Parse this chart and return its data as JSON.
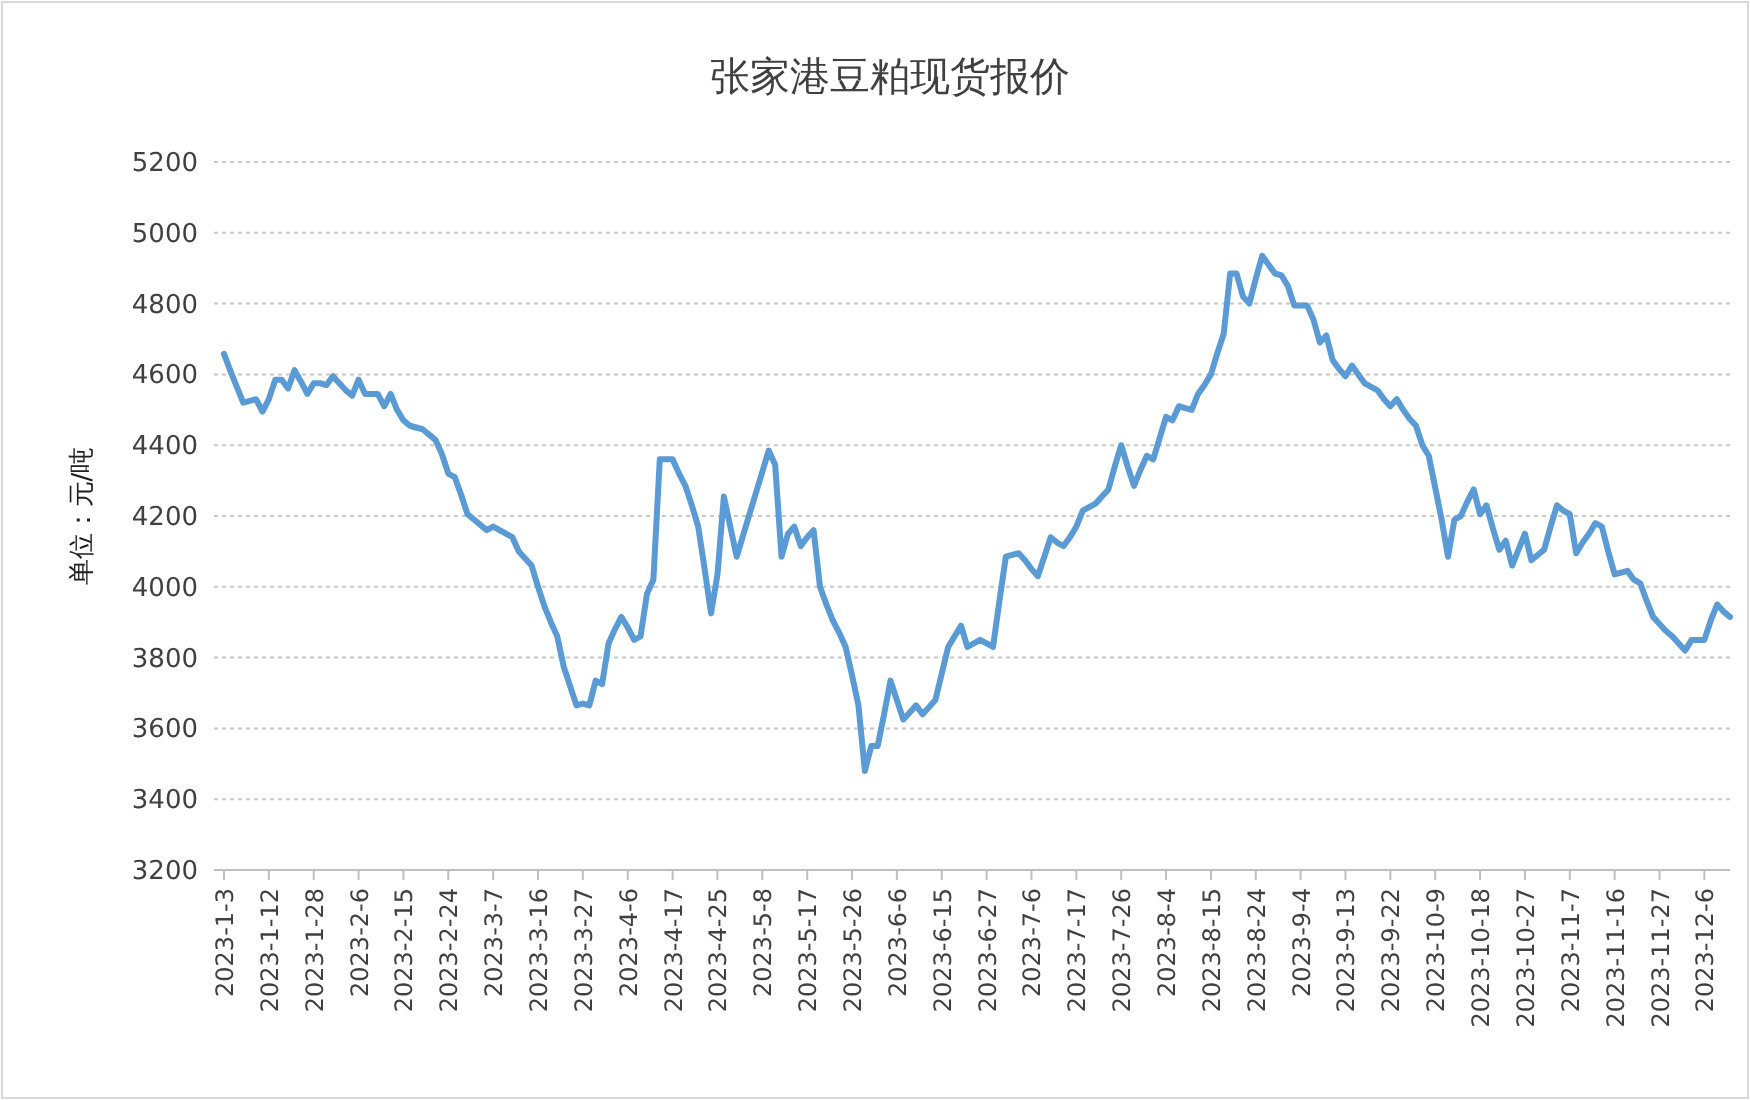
{
  "chart_data": {
    "type": "line",
    "title": "张家港豆粕现货报价",
    "ylabel": "单位：元/吨",
    "color": "#5b9bd5",
    "grid": "y",
    "ylim": [
      3200,
      5200
    ],
    "yticks": [
      3200,
      3400,
      3600,
      3800,
      4000,
      4200,
      4400,
      4600,
      4800,
      5000,
      5200
    ],
    "categories": [
      "2023-1-3",
      null,
      null,
      null,
      null,
      null,
      null,
      "2023-1-12",
      null,
      null,
      null,
      null,
      null,
      null,
      "2023-1-28",
      null,
      null,
      null,
      null,
      null,
      null,
      "2023-2-6",
      null,
      null,
      null,
      null,
      null,
      null,
      "2023-2-15",
      null,
      null,
      null,
      null,
      null,
      null,
      "2023-2-24",
      null,
      null,
      null,
      null,
      null,
      null,
      "2023-3-7",
      null,
      null,
      null,
      null,
      null,
      null,
      "2023-3-16",
      null,
      null,
      null,
      null,
      null,
      null,
      "2023-3-27",
      null,
      null,
      null,
      null,
      null,
      null,
      "2023-4-6",
      null,
      null,
      null,
      null,
      null,
      null,
      "2023-4-17",
      null,
      null,
      null,
      null,
      null,
      null,
      "2023-4-25",
      null,
      null,
      null,
      null,
      null,
      null,
      "2023-5-8",
      null,
      null,
      null,
      null,
      null,
      null,
      "2023-5-17",
      null,
      null,
      null,
      null,
      null,
      null,
      "2023-5-26",
      null,
      null,
      null,
      null,
      null,
      null,
      "2023-6-6",
      null,
      null,
      null,
      null,
      null,
      null,
      "2023-6-15",
      null,
      null,
      null,
      null,
      null,
      null,
      "2023-6-27",
      null,
      null,
      null,
      null,
      null,
      null,
      "2023-7-6",
      null,
      null,
      null,
      null,
      null,
      null,
      "2023-7-17",
      null,
      null,
      null,
      null,
      null,
      null,
      "2023-7-26",
      null,
      null,
      null,
      null,
      null,
      null,
      "2023-8-4",
      null,
      null,
      null,
      null,
      null,
      null,
      "2023-8-15",
      null,
      null,
      null,
      null,
      null,
      null,
      "2023-8-24",
      null,
      null,
      null,
      null,
      null,
      null,
      "2023-9-4",
      null,
      null,
      null,
      null,
      null,
      null,
      "2023-9-13",
      null,
      null,
      null,
      null,
      null,
      null,
      "2023-9-22",
      null,
      null,
      null,
      null,
      null,
      null,
      "2023-10-9",
      null,
      null,
      null,
      null,
      null,
      null,
      "2023-10-18",
      null,
      null,
      null,
      null,
      null,
      null,
      "2023-10-27",
      null,
      null,
      null,
      null,
      null,
      null,
      "2023-11-7",
      null,
      null,
      null,
      null,
      null,
      null,
      "2023-11-16",
      null,
      null,
      null,
      null,
      null,
      null,
      "2023-11-27",
      null,
      null,
      null,
      null,
      null,
      null,
      "2023-12-6",
      null,
      null,
      null,
      null
    ],
    "values": [
      4658,
      4610,
      4565,
      4520,
      4525,
      4530,
      4495,
      4530,
      4585,
      4585,
      4560,
      4612,
      4580,
      4545,
      4575,
      4575,
      4570,
      4595,
      4575,
      4555,
      4540,
      4585,
      4545,
      4545,
      4545,
      4510,
      4545,
      4500,
      4470,
      4455,
      4450,
      4445,
      4430,
      4415,
      4375,
      4320,
      4310,
      4260,
      4205,
      4190,
      4175,
      4160,
      4170,
      4160,
      4150,
      4140,
      4100,
      4080,
      4060,
      4000,
      3945,
      3900,
      3860,
      3775,
      3720,
      3665,
      3670,
      3665,
      3735,
      3725,
      3840,
      3880,
      3915,
      3885,
      3850,
      3860,
      3980,
      4020,
      4360,
      4360,
      4360,
      4320,
      4285,
      4230,
      4170,
      4050,
      3925,
      4035,
      4255,
      4170,
      4085,
      4145,
      4205,
      4265,
      4325,
      4385,
      4345,
      4085,
      4150,
      4170,
      4115,
      4140,
      4160,
      4000,
      3950,
      3905,
      3870,
      3830,
      3750,
      3665,
      3480,
      3550,
      3550,
      3640,
      3735,
      3680,
      3625,
      3645,
      3665,
      3640,
      3660,
      3680,
      3755,
      3830,
      3860,
      3890,
      3830,
      3840,
      3850,
      3840,
      3830,
      3960,
      4085,
      4090,
      4095,
      4075,
      4050,
      4030,
      4085,
      4140,
      4125,
      4115,
      4140,
      4170,
      4215,
      4225,
      4235,
      4255,
      4275,
      4340,
      4400,
      4340,
      4285,
      4330,
      4370,
      4360,
      4420,
      4480,
      4470,
      4510,
      4505,
      4500,
      4545,
      4570,
      4600,
      4660,
      4715,
      4885,
      4885,
      4820,
      4800,
      4870,
      4935,
      4910,
      4885,
      4880,
      4850,
      4795,
      4795,
      4795,
      4755,
      4690,
      4710,
      4640,
      4615,
      4595,
      4625,
      4600,
      4575,
      4565,
      4555,
      4530,
      4510,
      4530,
      4500,
      4475,
      4455,
      4400,
      4370,
      4280,
      4190,
      4085,
      4190,
      4200,
      4240,
      4275,
      4205,
      4230,
      4165,
      4105,
      4130,
      4060,
      4105,
      4150,
      4075,
      4090,
      4105,
      4170,
      4230,
      4215,
      4205,
      4095,
      4125,
      4150,
      4180,
      4170,
      4100,
      4035,
      4040,
      4045,
      4020,
      4010,
      3960,
      3915,
      3895,
      3875,
      3860,
      3840,
      3820,
      3850,
      3850,
      3850,
      3905,
      3950,
      3930,
      3915
    ]
  }
}
